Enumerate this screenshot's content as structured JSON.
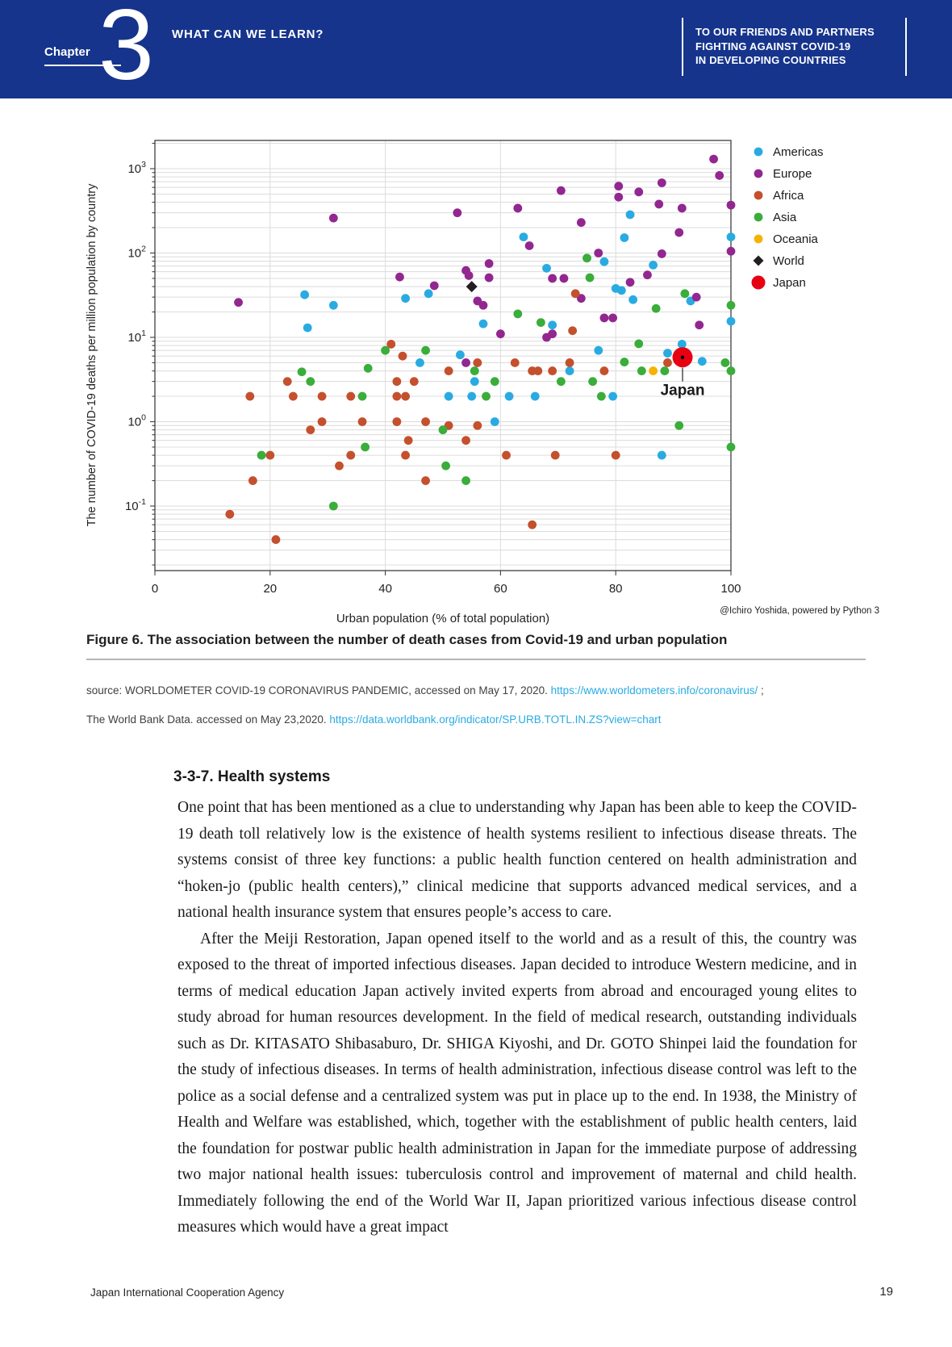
{
  "header": {
    "chapter_label": "Chapter",
    "chapter_number": "3",
    "title": "WHAT CAN WE LEARN?",
    "right_lines": [
      "TO OUR FRIENDS AND PARTNERS",
      "FIGHTING AGAINST COVID-19",
      "IN DEVELOPING COUNTRIES"
    ],
    "bg_color": "#16348C"
  },
  "figure": {
    "caption": "Figure 6. The association between the number of death cases from Covid-19 and urban population",
    "attribution": "@Ichiro Yoshida, powered by Python 3",
    "source_line1_prefix": "source: WORLDOMETER COVID-19 CORONAVIRUS PANDEMIC, accessed on May 17, 2020. ",
    "source_line1_link": "https://www.worldometers.info/coronavirus/",
    "source_line1_suffix": " ;",
    "source_line2_prefix": "The World Bank Data. accessed on May 23,2020. ",
    "source_line2_link": "https://data.worldbank.org/indicator/SP.URB.TOTL.IN.ZS?view=chart"
  },
  "section": {
    "heading": "3-3-7. Health systems",
    "paragraphs": [
      "One point that has been mentioned as a clue to understanding why Japan has been able to keep the COVID-19 death toll relatively low is the existence of  health systems resilient to infectious disease threats.  The systems consist of three key functions:  a public health function centered on health administration and “hoken-jo (public health centers),” clinical medicine that supports advanced medical services, and a national health insurance system that ensures people’s access to care.",
      "After the Meiji Restoration, Japan opened itself to the world and as a result of this, the country was exposed to the threat of imported infectious diseases. Japan decided to introduce Western medicine, and in terms of medical education Japan actively invited experts from abroad and encouraged young elites to study abroad for human resources development. In the field of medical research, outstanding individuals such as Dr. KITASATO Shibasaburo, Dr. SHIGA Kiyoshi, and Dr. GOTO Shinpei laid the foundation for the study of infectious diseases. In terms of health administration, infectious disease control was left to the police as a social defense and a centralized system was put in place up to the end. In 1938, the Ministry of Health and Welfare was established, which, together with the establishment of public health centers, laid the foundation for postwar public health administration in Japan for the immediate purpose of addressing two major national health issues: tuberculosis control and improvement of maternal and child health. Immediately following the end of the World War II, Japan prioritized various infectious disease control measures which would have a great impact"
    ]
  },
  "footer": {
    "left": "Japan International Cooperation Agency",
    "page_number": "19"
  },
  "chart_data": {
    "type": "scatter",
    "xlabel": "Urban population (% of total population)",
    "ylabel": "The number of COVID-19 deaths per million population by country",
    "xlim": [
      0,
      100
    ],
    "x_ticks": [
      0,
      20,
      40,
      60,
      80,
      100
    ],
    "y_scale": "log",
    "y_tick_exponents": [
      3,
      2,
      1,
      0,
      -1
    ],
    "ylim": [
      0.0172,
      2150
    ],
    "grid": true,
    "legend_position": "right",
    "series": [
      {
        "name": "Americas",
        "color": "#29ABE2",
        "marker": "circle",
        "points": [
          [
            82.5,
            285
          ],
          [
            64,
            155
          ],
          [
            100,
            155
          ],
          [
            81.5,
            152
          ],
          [
            78,
            79
          ],
          [
            86.5,
            72
          ],
          [
            68,
            66
          ],
          [
            80,
            38
          ],
          [
            81,
            36
          ],
          [
            47.5,
            33
          ],
          [
            26,
            32
          ],
          [
            43.5,
            29
          ],
          [
            83,
            28
          ],
          [
            93,
            27
          ],
          [
            31,
            24
          ],
          [
            100,
            15.5
          ],
          [
            57,
            14.5
          ],
          [
            69,
            14
          ],
          [
            26.5,
            13
          ],
          [
            91.5,
            8.3
          ],
          [
            77,
            7
          ],
          [
            89,
            6.5
          ],
          [
            53,
            6.2
          ],
          [
            95,
            5.2
          ],
          [
            46,
            5
          ],
          [
            72,
            4
          ],
          [
            55.5,
            3
          ],
          [
            51,
            2
          ],
          [
            55,
            2
          ],
          [
            61.5,
            2
          ],
          [
            66,
            2
          ],
          [
            79.5,
            2
          ],
          [
            59,
            1
          ],
          [
            88,
            0.4
          ]
        ]
      },
      {
        "name": "Europe",
        "color": "#92278F",
        "marker": "circle",
        "points": [
          [
            97,
            1300
          ],
          [
            98,
            830
          ],
          [
            88,
            680
          ],
          [
            80.5,
            620
          ],
          [
            70.5,
            550
          ],
          [
            84,
            530
          ],
          [
            80.5,
            460
          ],
          [
            87.5,
            380
          ],
          [
            100,
            370
          ],
          [
            91.5,
            340
          ],
          [
            63,
            340
          ],
          [
            52.5,
            300
          ],
          [
            31,
            260
          ],
          [
            74,
            230
          ],
          [
            91,
            175
          ],
          [
            65,
            122
          ],
          [
            100,
            105
          ],
          [
            77,
            100
          ],
          [
            88,
            98
          ],
          [
            58,
            75
          ],
          [
            54,
            62
          ],
          [
            85.5,
            55
          ],
          [
            54.5,
            54
          ],
          [
            42.5,
            52
          ],
          [
            58,
            51
          ],
          [
            69,
            50
          ],
          [
            71,
            50
          ],
          [
            82.5,
            45
          ],
          [
            48.5,
            41
          ],
          [
            94,
            30
          ],
          [
            74,
            29
          ],
          [
            56,
            27
          ],
          [
            14.5,
            26
          ],
          [
            57,
            24
          ],
          [
            78,
            17
          ],
          [
            79.5,
            17
          ],
          [
            94.5,
            14
          ],
          [
            69,
            11
          ],
          [
            60,
            11
          ],
          [
            68,
            10
          ],
          [
            54,
            5
          ]
        ]
      },
      {
        "name": "Africa",
        "color": "#C4502D",
        "marker": "circle",
        "points": [
          [
            73,
            33
          ],
          [
            72.5,
            12
          ],
          [
            41,
            8.3
          ],
          [
            43,
            6
          ],
          [
            72,
            5
          ],
          [
            89,
            5
          ],
          [
            62.5,
            5
          ],
          [
            56,
            5
          ],
          [
            51,
            4
          ],
          [
            65.5,
            4
          ],
          [
            66.5,
            4
          ],
          [
            69,
            4
          ],
          [
            78,
            4
          ],
          [
            42,
            3
          ],
          [
            45,
            3
          ],
          [
            23,
            3
          ],
          [
            16.5,
            2
          ],
          [
            24,
            2
          ],
          [
            29,
            2
          ],
          [
            34,
            2
          ],
          [
            42,
            2
          ],
          [
            43.5,
            2
          ],
          [
            29,
            1
          ],
          [
            36,
            1
          ],
          [
            42,
            1
          ],
          [
            47,
            1
          ],
          [
            51,
            0.9
          ],
          [
            56,
            0.9
          ],
          [
            27,
            0.8
          ],
          [
            44,
            0.6
          ],
          [
            54,
            0.6
          ],
          [
            34,
            0.4
          ],
          [
            20,
            0.4
          ],
          [
            43.5,
            0.4
          ],
          [
            61,
            0.4
          ],
          [
            69.5,
            0.4
          ],
          [
            80,
            0.4
          ],
          [
            32,
            0.3
          ],
          [
            17,
            0.2
          ],
          [
            47,
            0.2
          ],
          [
            13,
            0.08
          ],
          [
            65.5,
            0.06
          ],
          [
            21,
            0.04
          ]
        ]
      },
      {
        "name": "Asia",
        "color": "#3AAD3A",
        "marker": "circle",
        "points": [
          [
            75,
            87
          ],
          [
            75.5,
            51
          ],
          [
            92,
            33
          ],
          [
            100,
            24
          ],
          [
            87,
            22
          ],
          [
            63,
            19
          ],
          [
            67,
            15
          ],
          [
            84,
            8.4
          ],
          [
            40,
            7
          ],
          [
            47,
            7
          ],
          [
            81.5,
            5.1
          ],
          [
            99,
            5
          ],
          [
            37,
            4.3
          ],
          [
            55.5,
            4
          ],
          [
            84.5,
            4
          ],
          [
            88.5,
            4
          ],
          [
            100,
            4
          ],
          [
            25.5,
            3.9
          ],
          [
            27,
            3
          ],
          [
            59,
            3
          ],
          [
            70.5,
            3
          ],
          [
            76,
            3
          ],
          [
            36,
            2
          ],
          [
            57.5,
            2
          ],
          [
            77.5,
            2
          ],
          [
            91,
            0.9
          ],
          [
            50,
            0.8
          ],
          [
            36.5,
            0.5
          ],
          [
            100,
            0.5
          ],
          [
            18.5,
            0.4
          ],
          [
            50.5,
            0.3
          ],
          [
            54,
            0.2
          ],
          [
            31,
            0.1
          ]
        ]
      },
      {
        "name": "Oceania",
        "color": "#F5B301",
        "marker": "circle",
        "points": [
          [
            86.5,
            4
          ]
        ]
      },
      {
        "name": "World",
        "color": "#231F20",
        "marker": "diamond",
        "points": [
          [
            55,
            40
          ]
        ]
      },
      {
        "name": "Japan",
        "color": "#E60012",
        "marker": "big-circle",
        "points": [
          [
            91.6,
            5.8
          ]
        ]
      }
    ],
    "annotation": {
      "label": "Japan",
      "x": 91.6,
      "y": 5.8
    }
  }
}
